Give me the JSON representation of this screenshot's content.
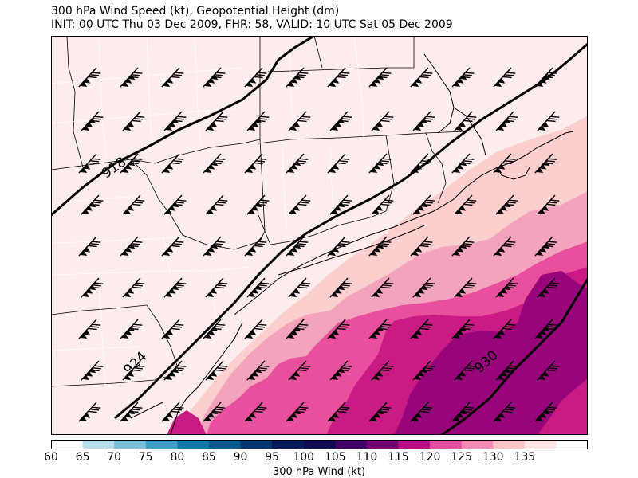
{
  "title_line1": "300 hPa Wind Speed (kt), Geopotential Height (dm)",
  "title_line2": "INIT: 00 UTC Thu 03 Dec 2009, FHR: 58, VALID: 10 UTC Sat 05 Dec 2009",
  "height_contour_labels": [
    "918",
    "924",
    "930"
  ],
  "colorbar": {
    "label": "300 hPa Wind (kt)",
    "ticks": [
      "60",
      "65",
      "70",
      "75",
      "80",
      "85",
      "90",
      "95",
      "100",
      "105",
      "110",
      "115",
      "120",
      "125",
      "130",
      "135"
    ],
    "colors": [
      "#ffffff",
      "#b7dcea",
      "#7bbfd6",
      "#3f9fc4",
      "#0e7ba8",
      "#035c8c",
      "#05336d",
      "#071a58",
      "#100a4e",
      "#3e0062",
      "#750070",
      "#b80f85",
      "#e0509e",
      "#f08bb4",
      "#fbc5c6",
      "#fde4e4",
      "#ffffff"
    ],
    "field_colors": {
      "lt": "#fdecec",
      "c125": "#fbcfcd",
      "c120": "#f3a3bd",
      "c115": "#e8509d",
      "c110": "#c91b83",
      "c105": "#98047a"
    }
  }
}
